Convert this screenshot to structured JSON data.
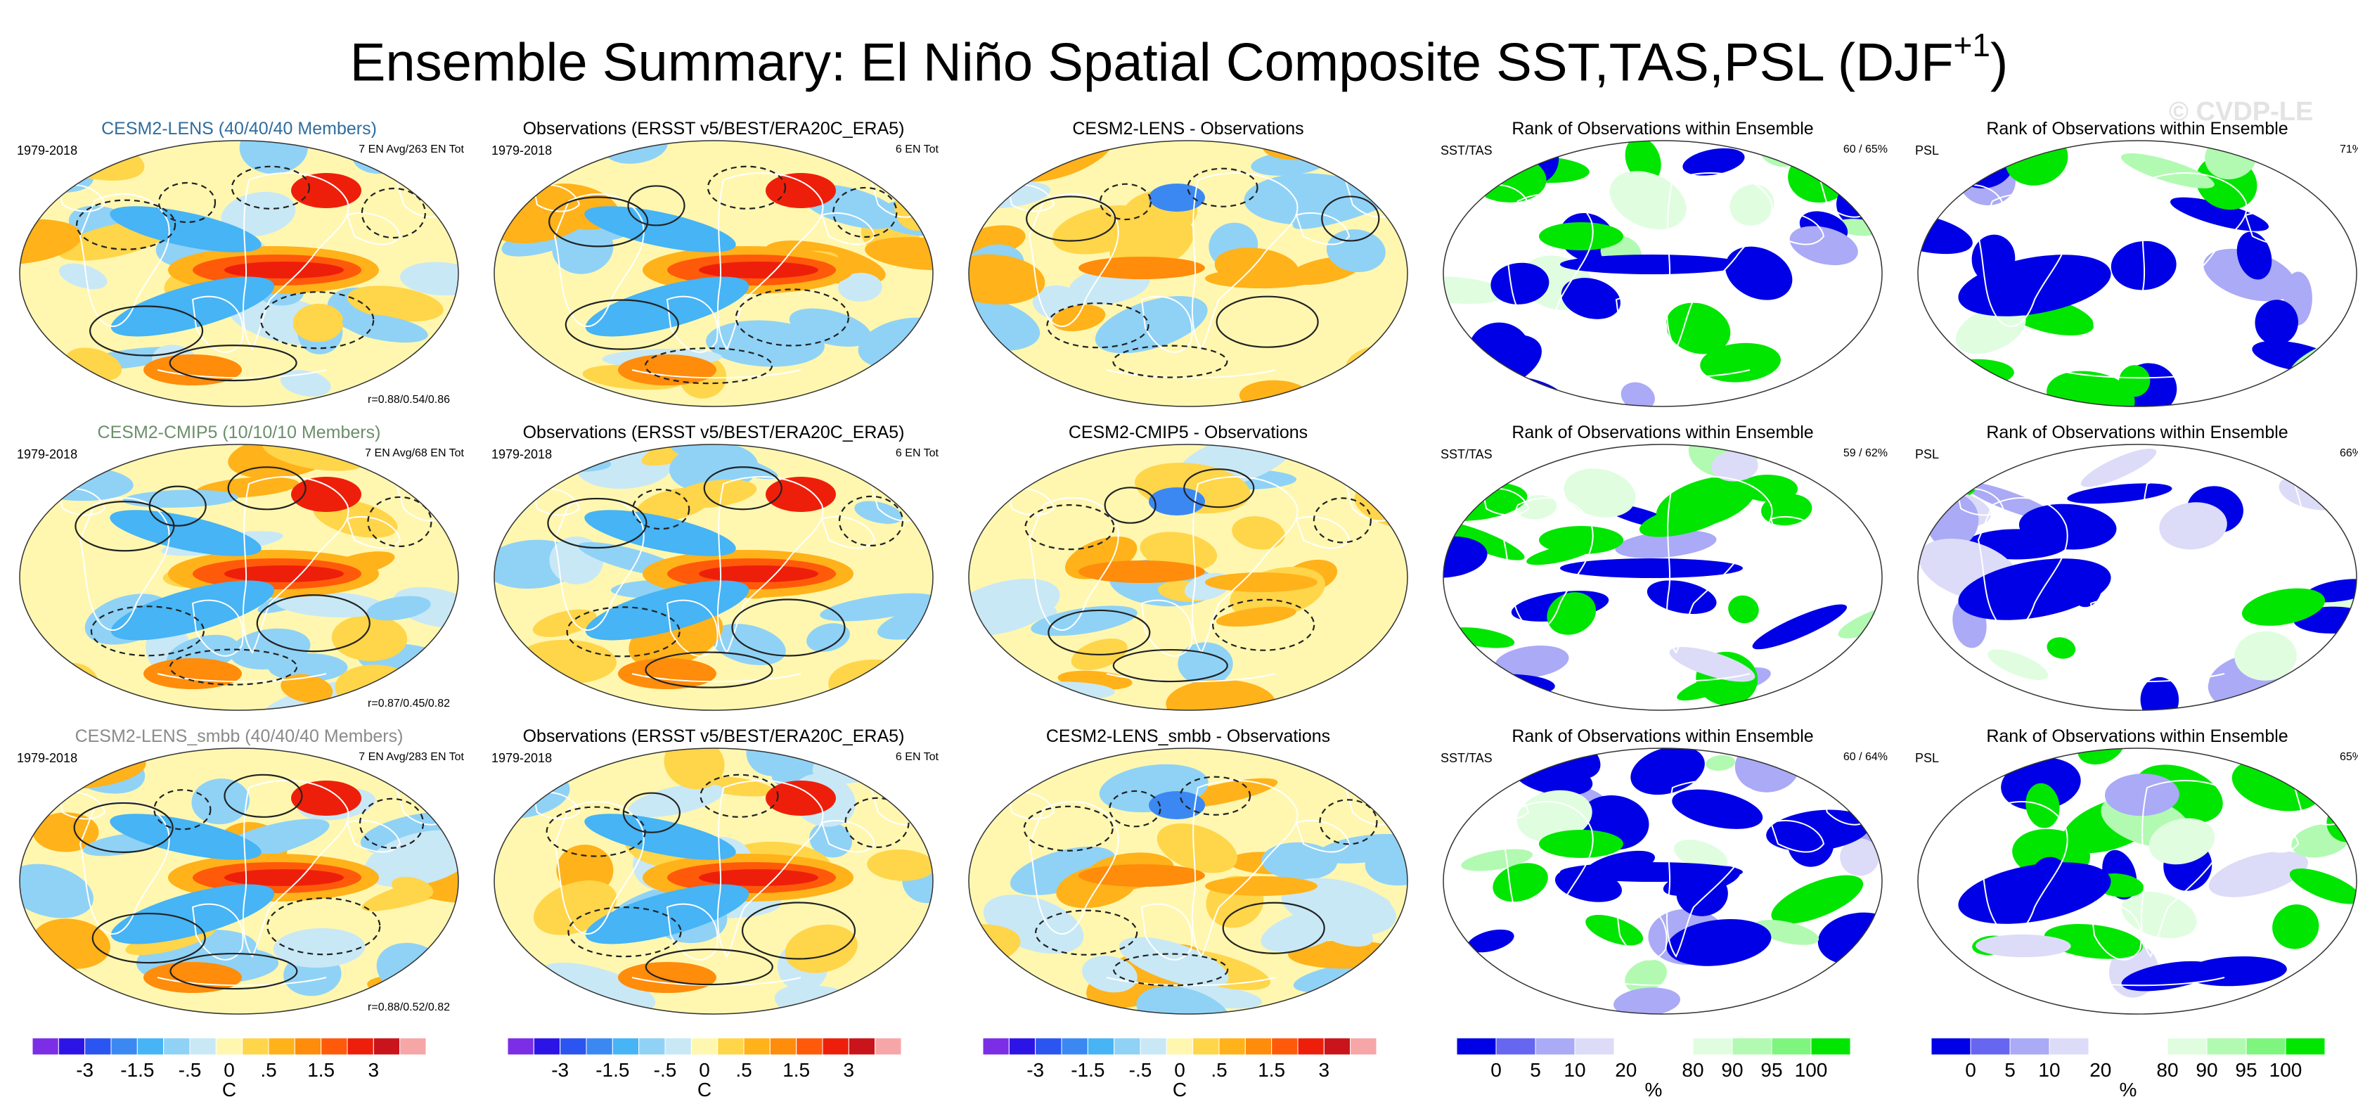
{
  "figure": {
    "title": "Ensemble Summary: El Niño Spatial Composite SST,TAS,PSL (DJF",
    "title_superscript": "+1",
    "title_close": ")",
    "watermark": "© CVDP-LE"
  },
  "colors": {
    "composite_palette": [
      "#7b2ee6",
      "#2d14e6",
      "#2b55f0",
      "#3b88f2",
      "#46b4f5",
      "#8fd2f6",
      "#c8e8f6",
      "#fff7b0",
      "#ffd54a",
      "#ffb21a",
      "#ff8c0a",
      "#ff5a0a",
      "#ee1f0a",
      "#c8141a",
      "#f7a6a8"
    ],
    "rank_palette": [
      "#0000e6",
      "#6666f0",
      "#aaaaf6",
      "#dcdcf8",
      "#ffffff",
      "#ffffff",
      "#e0fde0",
      "#b2fab2",
      "#7ef57e",
      "#00e600"
    ],
    "contour_line": "#222222",
    "coastline": "#ffffff"
  },
  "colorbars": {
    "composite": {
      "ticks": [
        "-3",
        "-1.5",
        "-.5",
        "0",
        ".5",
        "1.5",
        "3"
      ],
      "units": "C"
    },
    "rank": {
      "ticks": [
        "0",
        "5",
        "10",
        "20",
        "80",
        "90",
        "95",
        "100"
      ],
      "units": "%"
    }
  },
  "rows": [
    {
      "model": {
        "title": "CESM2-LENS (40/40/40 Members)",
        "period": "1979-2018",
        "members_info": "7 EN Avg/263 EN Tot",
        "correlation": "r=0.88/0.54/0.86"
      },
      "obs": {
        "title": "Observations (ERSST v5/BEST/ERA20C_ERA5)",
        "period": "1979-2018",
        "members_info": "6 EN Tot"
      },
      "diff": {
        "title": "CESM2-LENS - Observations"
      },
      "rank_sst": {
        "title": "Rank of Observations within Ensemble",
        "variable": "SST/TAS",
        "percent": "60 /  65%"
      },
      "rank_psl": {
        "title": "Rank of Observations within Ensemble",
        "variable": "PSL",
        "percent": "71%"
      }
    },
    {
      "model": {
        "title": "CESM2-CMIP5 (10/10/10 Members)",
        "period": "1979-2018",
        "members_info": "7 EN Avg/68 EN Tot",
        "correlation": "r=0.87/0.45/0.82"
      },
      "obs": {
        "title": "Observations (ERSST v5/BEST/ERA20C_ERA5)",
        "period": "1979-2018",
        "members_info": "6 EN Tot"
      },
      "diff": {
        "title": "CESM2-CMIP5 - Observations"
      },
      "rank_sst": {
        "title": "Rank of Observations within Ensemble",
        "variable": "SST/TAS",
        "percent": "59 /  62%"
      },
      "rank_psl": {
        "title": "Rank of Observations within Ensemble",
        "variable": "PSL",
        "percent": "66%"
      }
    },
    {
      "model": {
        "title": "CESM2-LENS_smbb (40/40/40 Members)",
        "period": "1979-2018",
        "members_info": "7 EN Avg/283 EN Tot",
        "correlation": "r=0.88/0.52/0.82"
      },
      "obs": {
        "title": "Observations (ERSST v5/BEST/ERA20C_ERA5)",
        "period": "1979-2018",
        "members_info": "6 EN Tot"
      },
      "diff": {
        "title": "CESM2-LENS_smbb - Observations"
      },
      "rank_sst": {
        "title": "Rank of Observations within Ensemble",
        "variable": "SST/TAS",
        "percent": "60 /  64%"
      },
      "rank_psl": {
        "title": "Rank of Observations within Ensemble",
        "variable": "PSL",
        "percent": "65%"
      }
    }
  ],
  "chart_data": {
    "type": "heatmap",
    "title": "Ensemble Summary: El Niño Spatial Composite SST,TAS,PSL (DJF+1)",
    "projection": "Robinson (global, Pacific-centered)",
    "period": "1979-2018",
    "columns": [
      "Model composite",
      "Observations composite",
      "Model - Observations",
      "Rank SST/TAS",
      "Rank PSL"
    ],
    "composite_colorbar": {
      "ticks": [
        -3,
        -1.5,
        -0.5,
        0,
        0.5,
        1.5,
        3
      ],
      "units": "C"
    },
    "rank_colorbar": {
      "ticks": [
        0,
        5,
        10,
        20,
        80,
        90,
        95,
        100
      ],
      "units": "%"
    },
    "pattern_correlations": [
      {
        "model": "CESM2-LENS",
        "r": [
          0.88,
          0.54,
          0.86
        ]
      },
      {
        "model": "CESM2-CMIP5",
        "r": [
          0.87,
          0.45,
          0.82
        ]
      },
      {
        "model": "CESM2-LENS_smbb",
        "r": [
          0.88,
          0.52,
          0.82
        ]
      }
    ],
    "rank_percent_within_range": [
      {
        "model": "CESM2-LENS",
        "sst": 60,
        "tas": 65,
        "psl": 71
      },
      {
        "model": "CESM2-CMIP5",
        "sst": 59,
        "tas": 62,
        "psl": 66
      },
      {
        "model": "CESM2-LENS_smbb",
        "sst": 60,
        "tas": 64,
        "psl": 65
      }
    ]
  }
}
